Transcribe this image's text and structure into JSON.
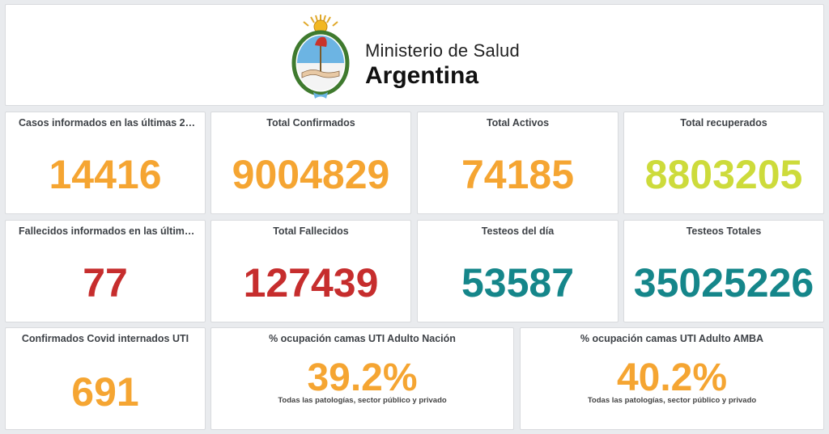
{
  "header": {
    "line1": "Ministerio de Salud",
    "line2": "Argentina",
    "seal_icon": "argentina-coat-of-arms-icon"
  },
  "colors": {
    "orange": "#f5a532",
    "lime": "#cddb3b",
    "red": "#c62d2d",
    "teal": "#15868a"
  },
  "row1": [
    {
      "title": "Casos informados en las últimas 24 ...",
      "value": "14416"
    },
    {
      "title": "Total Confirmados",
      "value": "9004829"
    },
    {
      "title": "Total Activos",
      "value": "74185"
    },
    {
      "title": "Total recuperados",
      "value": "8803205"
    }
  ],
  "row2": [
    {
      "title": "Fallecidos informados en las últimas ...",
      "value": "77"
    },
    {
      "title": "Total Fallecidos",
      "value": "127439"
    },
    {
      "title": "Testeos del día",
      "value": "53587"
    },
    {
      "title": "Testeos Totales",
      "value": "35025226"
    }
  ],
  "row3": [
    {
      "title": "Confirmados Covid internados UTI",
      "value": "691"
    },
    {
      "title": "% ocupación camas UTI Adulto Nación",
      "value": "39.2%",
      "subtitle": "Todas las patologías, sector público y privado"
    },
    {
      "title": "% ocupación camas UTI Adulto AMBA",
      "value": "40.2%",
      "subtitle": "Todas las patologías, sector público y privado"
    }
  ]
}
